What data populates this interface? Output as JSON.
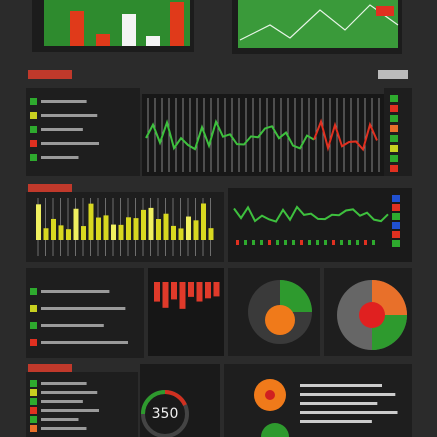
{
  "gauge": {
    "value_text": "350"
  }
}
